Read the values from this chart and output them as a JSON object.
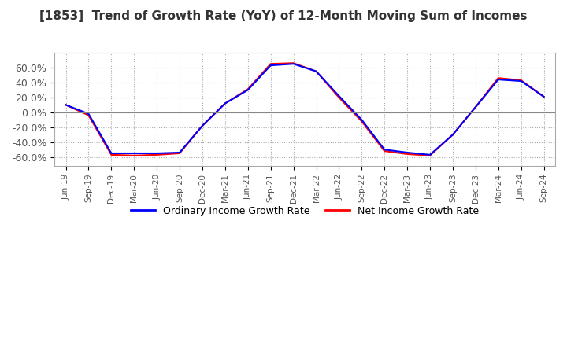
{
  "title": "[1853]  Trend of Growth Rate (YoY) of 12-Month Moving Sum of Incomes",
  "title_fontsize": 11,
  "ylim": [
    -0.72,
    0.8
  ],
  "yticks": [
    -0.6,
    -0.4,
    -0.2,
    0.0,
    0.2,
    0.4,
    0.6
  ],
  "ytick_labels": [
    "-60.0%",
    "-40.0%",
    "-20.0%",
    "0.0%",
    "20.0%",
    "40.0%",
    "60.0%"
  ],
  "background_color": "#ffffff",
  "grid_color": "#aaaaaa",
  "legend_labels": [
    "Ordinary Income Growth Rate",
    "Net Income Growth Rate"
  ],
  "legend_colors": [
    "#0000ff",
    "#ff0000"
  ],
  "dates": [
    "Jun-19",
    "Sep-19",
    "Dec-19",
    "Mar-20",
    "Jun-20",
    "Sep-20",
    "Dec-20",
    "Mar-21",
    "Jun-21",
    "Sep-21",
    "Dec-21",
    "Mar-22",
    "Jun-22",
    "Sep-22",
    "Dec-22",
    "Mar-23",
    "Jun-23",
    "Sep-23",
    "Dec-23",
    "Mar-24",
    "Jun-24",
    "Sep-24"
  ],
  "ordinary_income": [
    0.1,
    -0.02,
    -0.55,
    -0.55,
    -0.55,
    -0.54,
    -0.18,
    0.12,
    0.3,
    0.63,
    0.65,
    0.55,
    0.22,
    -0.1,
    -0.5,
    -0.54,
    -0.57,
    -0.3,
    0.07,
    0.44,
    0.42,
    0.21
  ],
  "net_income": [
    0.1,
    -0.04,
    -0.57,
    -0.58,
    -0.57,
    -0.55,
    -0.18,
    0.12,
    0.31,
    0.65,
    0.66,
    0.55,
    0.2,
    -0.12,
    -0.52,
    -0.56,
    -0.58,
    -0.3,
    0.07,
    0.46,
    0.43,
    0.21
  ]
}
